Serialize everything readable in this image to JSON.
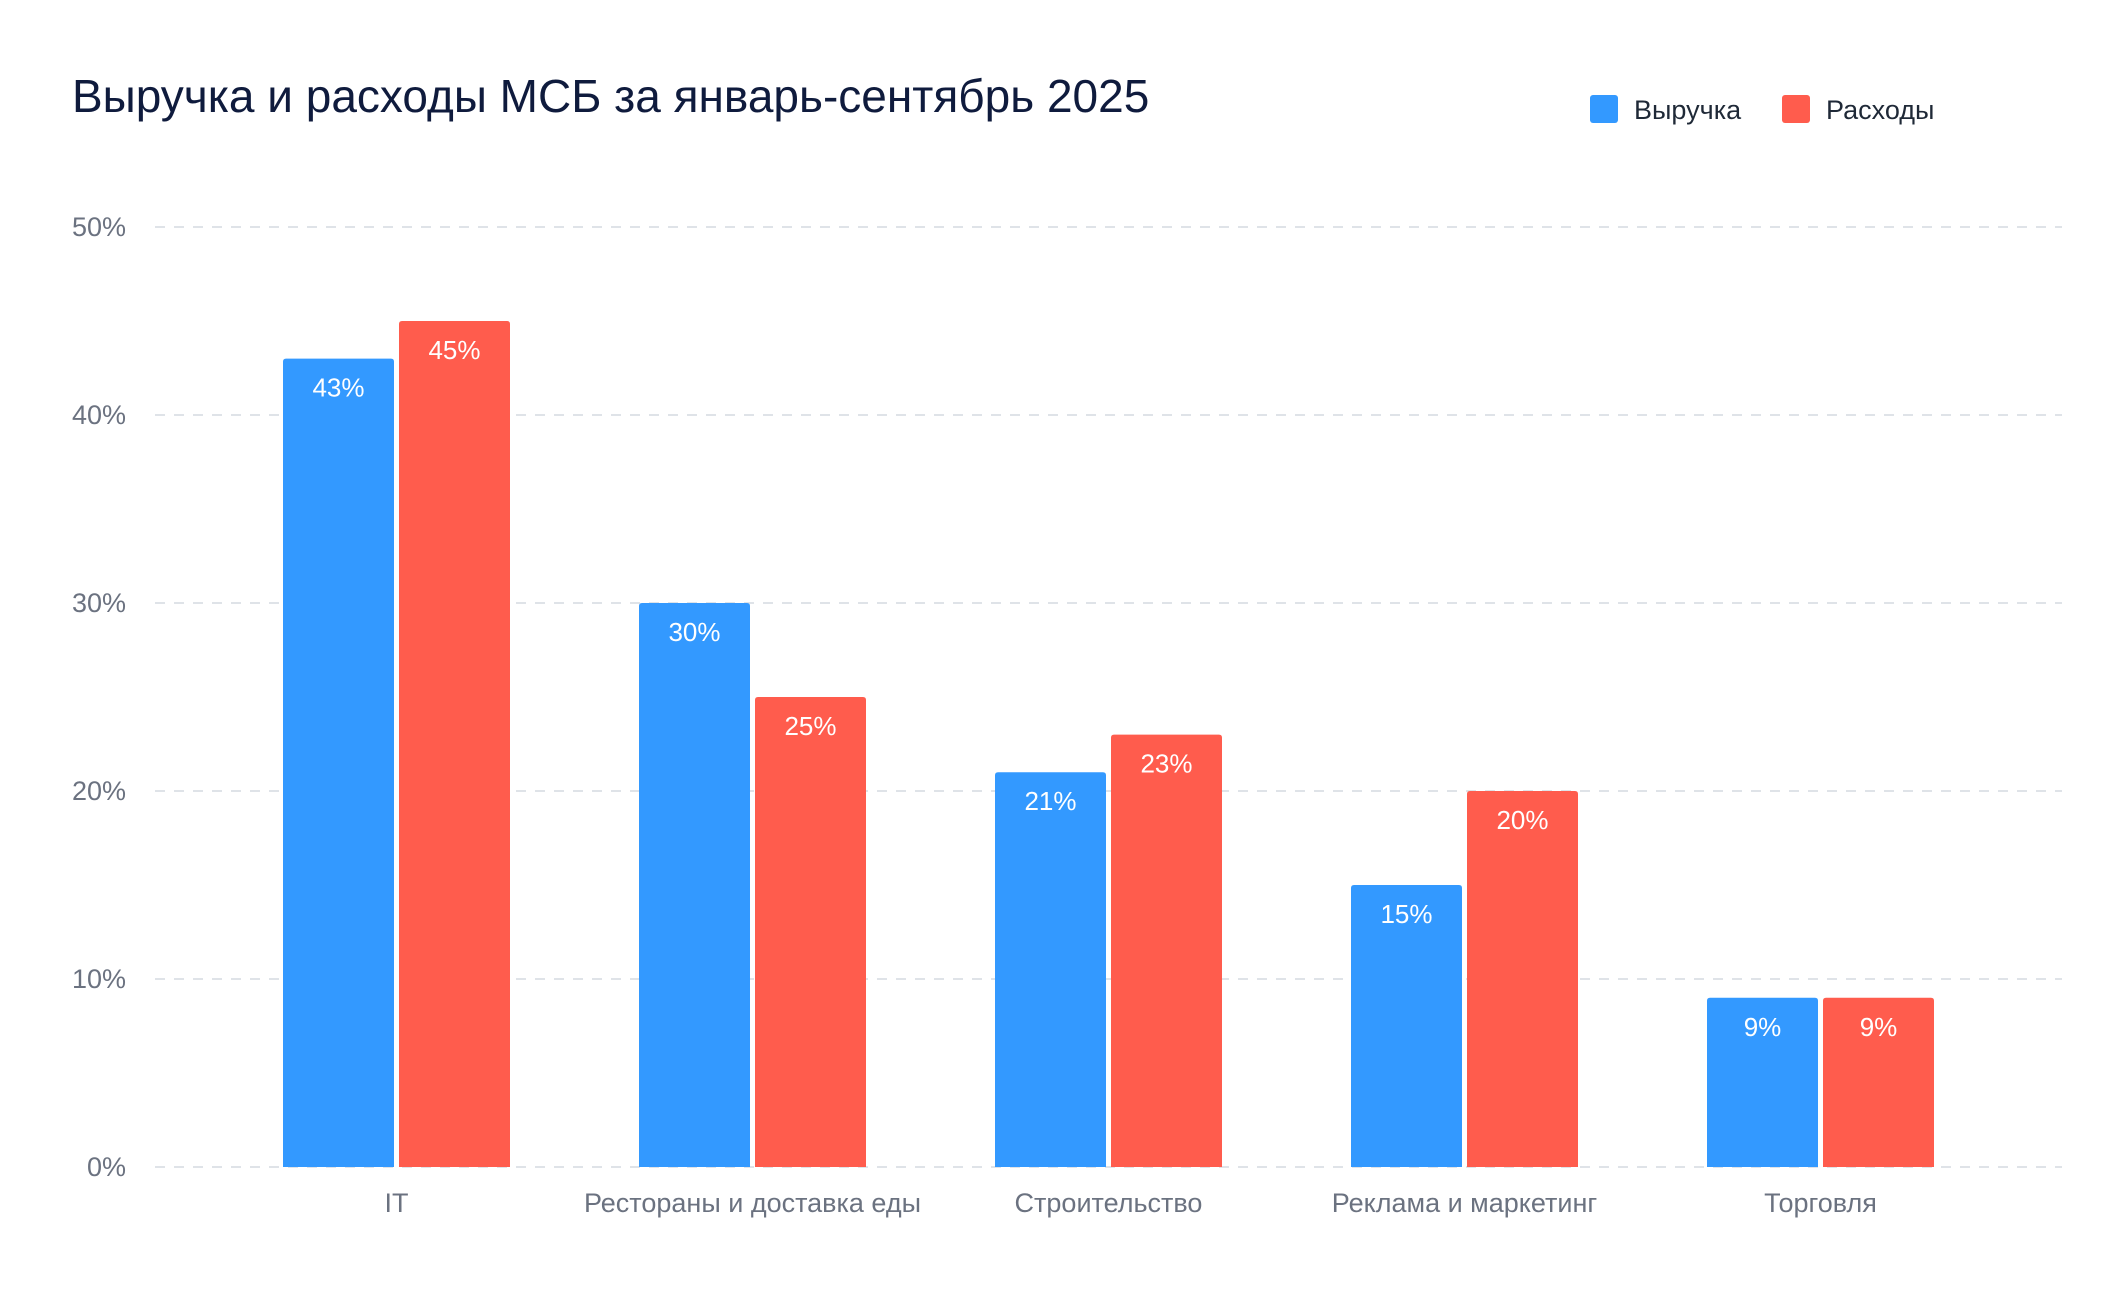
{
  "chart_data": {
    "type": "bar",
    "title": "Выручка и расходы МСБ за январь-сентябрь 2025",
    "xlabel": "",
    "ylabel": "",
    "ylim": [
      0,
      50
    ],
    "y_ticks": [
      0,
      10,
      20,
      30,
      40,
      50
    ],
    "y_tick_labels": [
      "0%",
      "10%",
      "20%",
      "30%",
      "40%",
      "50%"
    ],
    "grid": true,
    "legend_position": "top-right",
    "categories": [
      "IT",
      "Рестораны и доставка еды",
      "Строительство",
      "Реклама и маркетинг",
      "Торговля"
    ],
    "series": [
      {
        "name": "Выручка",
        "color": "#3399ff",
        "values": [
          43,
          30,
          21,
          15,
          9
        ],
        "labels": [
          "43%",
          "30%",
          "21%",
          "15%",
          "9%"
        ]
      },
      {
        "name": "Расходы",
        "color": "#ff5c4d",
        "values": [
          45,
          25,
          23,
          20,
          9
        ],
        "labels": [
          "45%",
          "25%",
          "23%",
          "20%",
          "9%"
        ]
      }
    ]
  }
}
